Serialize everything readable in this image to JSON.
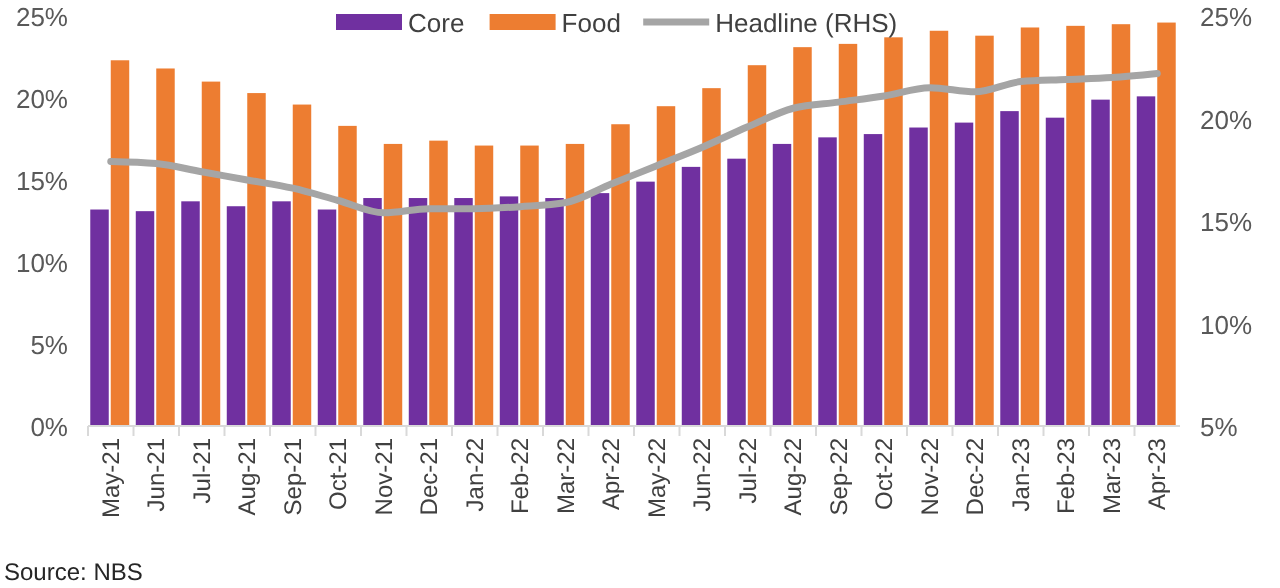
{
  "chart_data": {
    "type": "bar",
    "categories": [
      "May-21",
      "Jun-21",
      "Jul-21",
      "Aug-21",
      "Sep-21",
      "Oct-21",
      "Nov-21",
      "Dec-21",
      "Jan-22",
      "Feb-22",
      "Mar-22",
      "Apr-22",
      "May-22",
      "Jun-22",
      "Jul-22",
      "Aug-22",
      "Sep-22",
      "Oct-22",
      "Nov-22",
      "Dec-22",
      "Jan-23",
      "Feb-23",
      "Mar-23",
      "Apr-23"
    ],
    "series": [
      {
        "name": "Core",
        "color": "#7030a0",
        "values": [
          13.2,
          13.1,
          13.7,
          13.4,
          13.7,
          13.2,
          13.9,
          13.9,
          13.9,
          14.0,
          13.9,
          14.2,
          14.9,
          15.8,
          16.3,
          17.2,
          17.6,
          17.8,
          18.2,
          18.5,
          19.2,
          18.8,
          19.9,
          20.1
        ]
      },
      {
        "name": "Food",
        "color": "#ed7d31",
        "values": [
          22.3,
          21.8,
          21.0,
          20.3,
          19.6,
          18.3,
          17.2,
          17.4,
          17.1,
          17.1,
          17.2,
          18.4,
          19.5,
          20.6,
          22.0,
          23.1,
          23.3,
          23.7,
          24.1,
          23.8,
          24.3,
          24.4,
          24.5,
          24.6
        ]
      },
      {
        "name": "Headline (RHS)",
        "type": "line",
        "axis": "y2",
        "color": "#a5a5a5",
        "values": [
          17.9,
          17.8,
          17.4,
          17.0,
          16.6,
          16.0,
          15.4,
          15.6,
          15.6,
          15.7,
          15.9,
          16.8,
          17.7,
          18.6,
          19.6,
          20.5,
          20.8,
          21.1,
          21.5,
          21.3,
          21.8,
          21.9,
          22.0,
          22.2
        ]
      }
    ],
    "ylim": [
      0,
      25
    ],
    "yticks": [
      {
        "value": 0,
        "label": "0%"
      },
      {
        "value": 5,
        "label": "5%"
      },
      {
        "value": 10,
        "label": "10%"
      },
      {
        "value": 15,
        "label": "15%"
      },
      {
        "value": 20,
        "label": "20%"
      },
      {
        "value": 25,
        "label": "25%"
      }
    ],
    "y2lim": [
      5,
      25
    ],
    "y2ticks": [
      {
        "value": 5,
        "label": "5%"
      },
      {
        "value": 10,
        "label": "10%"
      },
      {
        "value": 15,
        "label": "15%"
      },
      {
        "value": 20,
        "label": "20%"
      },
      {
        "value": 25,
        "label": "25%"
      }
    ],
    "legend": "top",
    "grid": false,
    "marker": "none",
    "line_style": "solid",
    "annotations": [
      "Source: NBS"
    ]
  }
}
